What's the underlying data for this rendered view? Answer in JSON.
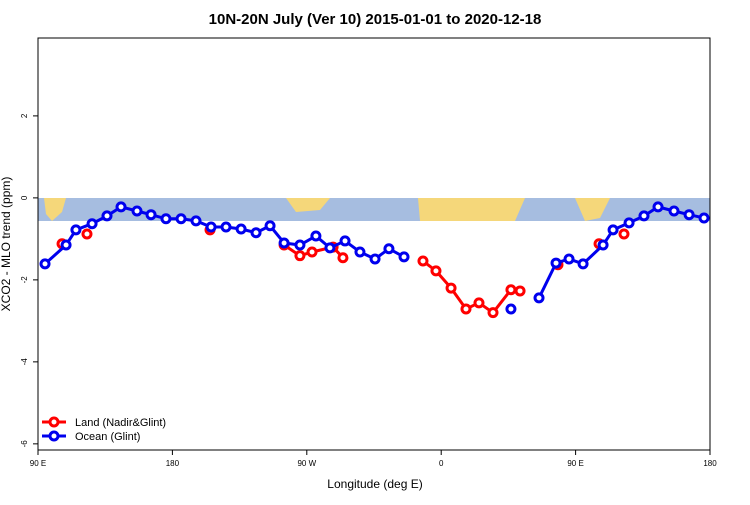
{
  "chart_data": {
    "type": "line",
    "title": "10N-20N July (Ver 10)   2015-01-01 to 2020-12-18",
    "x_label": "Longitude (deg E)",
    "y_label": "XCO2 - MLO trend (ppm)",
    "xlim": [
      90,
      540
    ],
    "xticks": [
      {
        "value": 90,
        "label": "90 E"
      },
      {
        "value": 180,
        "label": "180"
      },
      {
        "value": 270,
        "label": "90 W"
      },
      {
        "value": 360,
        "label": "0"
      },
      {
        "value": 450,
        "label": "90 E"
      },
      {
        "value": 540,
        "label": "180"
      }
    ],
    "ylim": [
      -6.15,
      3.9
    ],
    "yticks": [
      -6,
      -4,
      -2,
      0,
      2
    ],
    "legend": "bottom-left",
    "series": [
      {
        "name": "Land (Nadir&Glint)",
        "color": "#ff0000",
        "x": [
          106.1,
          null,
          122.8,
          null,
          205.2,
          null,
          254.8,
          265.4,
          273.5,
          287.6,
          294.2,
          null,
          347.8,
          356.5,
          366.6,
          376.6,
          385.3,
          394.7,
          406.7,
          412.8,
          null,
          438.2,
          null,
          465.7,
          null,
          482.4
        ],
        "values": [
          -1.12,
          null,
          -0.88,
          null,
          -0.78,
          null,
          -1.15,
          -1.41,
          -1.32,
          -1.2,
          -1.46,
          null,
          -1.54,
          -1.78,
          -2.2,
          -2.71,
          -2.56,
          -2.8,
          -2.24,
          -2.27,
          null,
          -1.63,
          null,
          -1.12,
          null,
          -0.88
        ]
      },
      {
        "name": "Ocean (Glint)",
        "color": "#0000ee",
        "x": [
          94.7,
          108.8,
          115.4,
          126.2,
          136.2,
          145.6,
          156.3,
          165.7,
          175.7,
          185.8,
          195.8,
          205.9,
          215.9,
          226,
          236,
          245.4,
          254.8,
          265.4,
          276.1,
          285.5,
          295.6,
          305.6,
          315.7,
          325,
          335.1,
          null,
          406.7,
          null,
          425.5,
          436.9,
          445.6,
          455,
          468.4,
          475.1,
          485.8,
          495.8,
          505.2,
          515.9,
          526,
          536
        ],
        "values": [
          -1.61,
          -1.15,
          -0.78,
          -0.63,
          -0.44,
          -0.22,
          -0.32,
          -0.41,
          -0.51,
          -0.51,
          -0.56,
          -0.71,
          -0.71,
          -0.76,
          -0.85,
          -0.68,
          -1.1,
          -1.15,
          -0.93,
          -1.22,
          -1.05,
          -1.32,
          -1.49,
          -1.24,
          -1.44,
          null,
          -2.71,
          null,
          -2.44,
          -1.59,
          -1.49,
          -1.61,
          -1.15,
          -0.78,
          -0.61,
          -0.44,
          -0.22,
          -0.32,
          -0.41,
          -0.49
        ]
      }
    ]
  }
}
